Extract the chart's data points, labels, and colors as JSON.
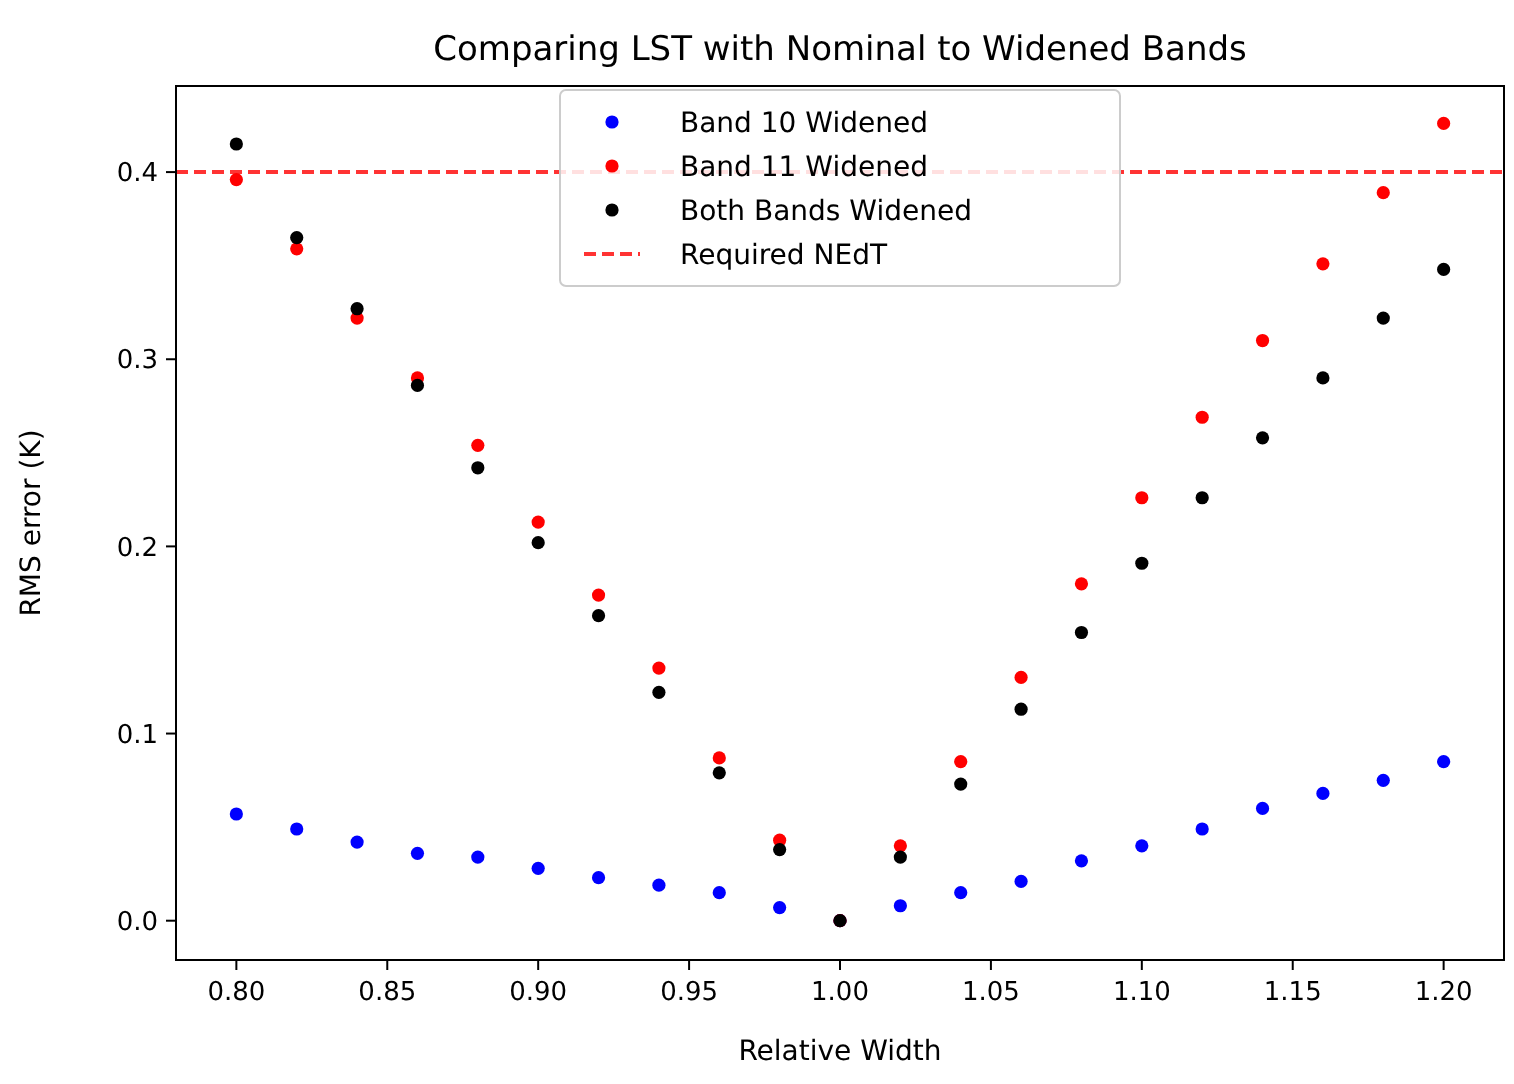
{
  "chart_data": {
    "type": "scatter",
    "title": "Comparing LST with Nominal to Widened Bands",
    "xlabel": "Relative Width",
    "ylabel": "RMS error (K)",
    "x": [
      0.8,
      0.82,
      0.84,
      0.86,
      0.88,
      0.9,
      0.92,
      0.94,
      0.96,
      0.98,
      1.0,
      1.02,
      1.04,
      1.06,
      1.08,
      1.1,
      1.12,
      1.14,
      1.16,
      1.18,
      1.2
    ],
    "series": [
      {
        "name": "Band 10 Widened",
        "color": "#0000ff",
        "values": [
          0.057,
          0.049,
          0.042,
          0.036,
          0.034,
          0.028,
          0.023,
          0.019,
          0.015,
          0.007,
          0,
          0.008,
          0.015,
          0.021,
          0.032,
          0.04,
          0.049,
          0.06,
          0.068,
          0.075,
          0.085
        ]
      },
      {
        "name": "Band 11 Widened",
        "color": "#ff0000",
        "values": [
          0.396,
          0.359,
          0.322,
          0.29,
          0.254,
          0.213,
          0.174,
          0.135,
          0.087,
          0.043,
          0,
          0.04,
          0.085,
          0.13,
          0.18,
          0.226,
          0.269,
          0.31,
          0.351,
          0.389,
          0.426
        ]
      },
      {
        "name": "Both Bands Widened",
        "color": "#000000",
        "values": [
          0.415,
          0.365,
          0.327,
          0.286,
          0.242,
          0.202,
          0.163,
          0.122,
          0.079,
          0.038,
          0,
          0.034,
          0.073,
          0.113,
          0.154,
          0.191,
          0.226,
          0.258,
          0.29,
          0.322,
          0.348
        ]
      }
    ],
    "ref_lines": [
      {
        "axis": "y",
        "value": 0.4,
        "label": "Required NEdT",
        "color": "#ff0000",
        "line_style": "dashed"
      }
    ],
    "xlim": [
      0.78,
      1.22
    ],
    "ylim": [
      -0.021,
      0.446
    ],
    "xticks": [
      {
        "value": 0.8,
        "label": "0.80"
      },
      {
        "value": 0.85,
        "label": "0.85"
      },
      {
        "value": 0.9,
        "label": "0.90"
      },
      {
        "value": 0.95,
        "label": "0.95"
      },
      {
        "value": 1.0,
        "label": "1.00"
      },
      {
        "value": 1.05,
        "label": "1.05"
      },
      {
        "value": 1.1,
        "label": "1.10"
      },
      {
        "value": 1.15,
        "label": "1.15"
      },
      {
        "value": 1.2,
        "label": "1.20"
      }
    ],
    "yticks": [
      {
        "value": 0,
        "label": "0.0"
      },
      {
        "value": 0.1,
        "label": "0.1"
      },
      {
        "value": 0.2,
        "label": "0.2"
      },
      {
        "value": 0.3,
        "label": "0.3"
      },
      {
        "value": 0.4,
        "label": "0.4"
      }
    ],
    "marker": "circle",
    "grid": false,
    "legend": "top"
  }
}
